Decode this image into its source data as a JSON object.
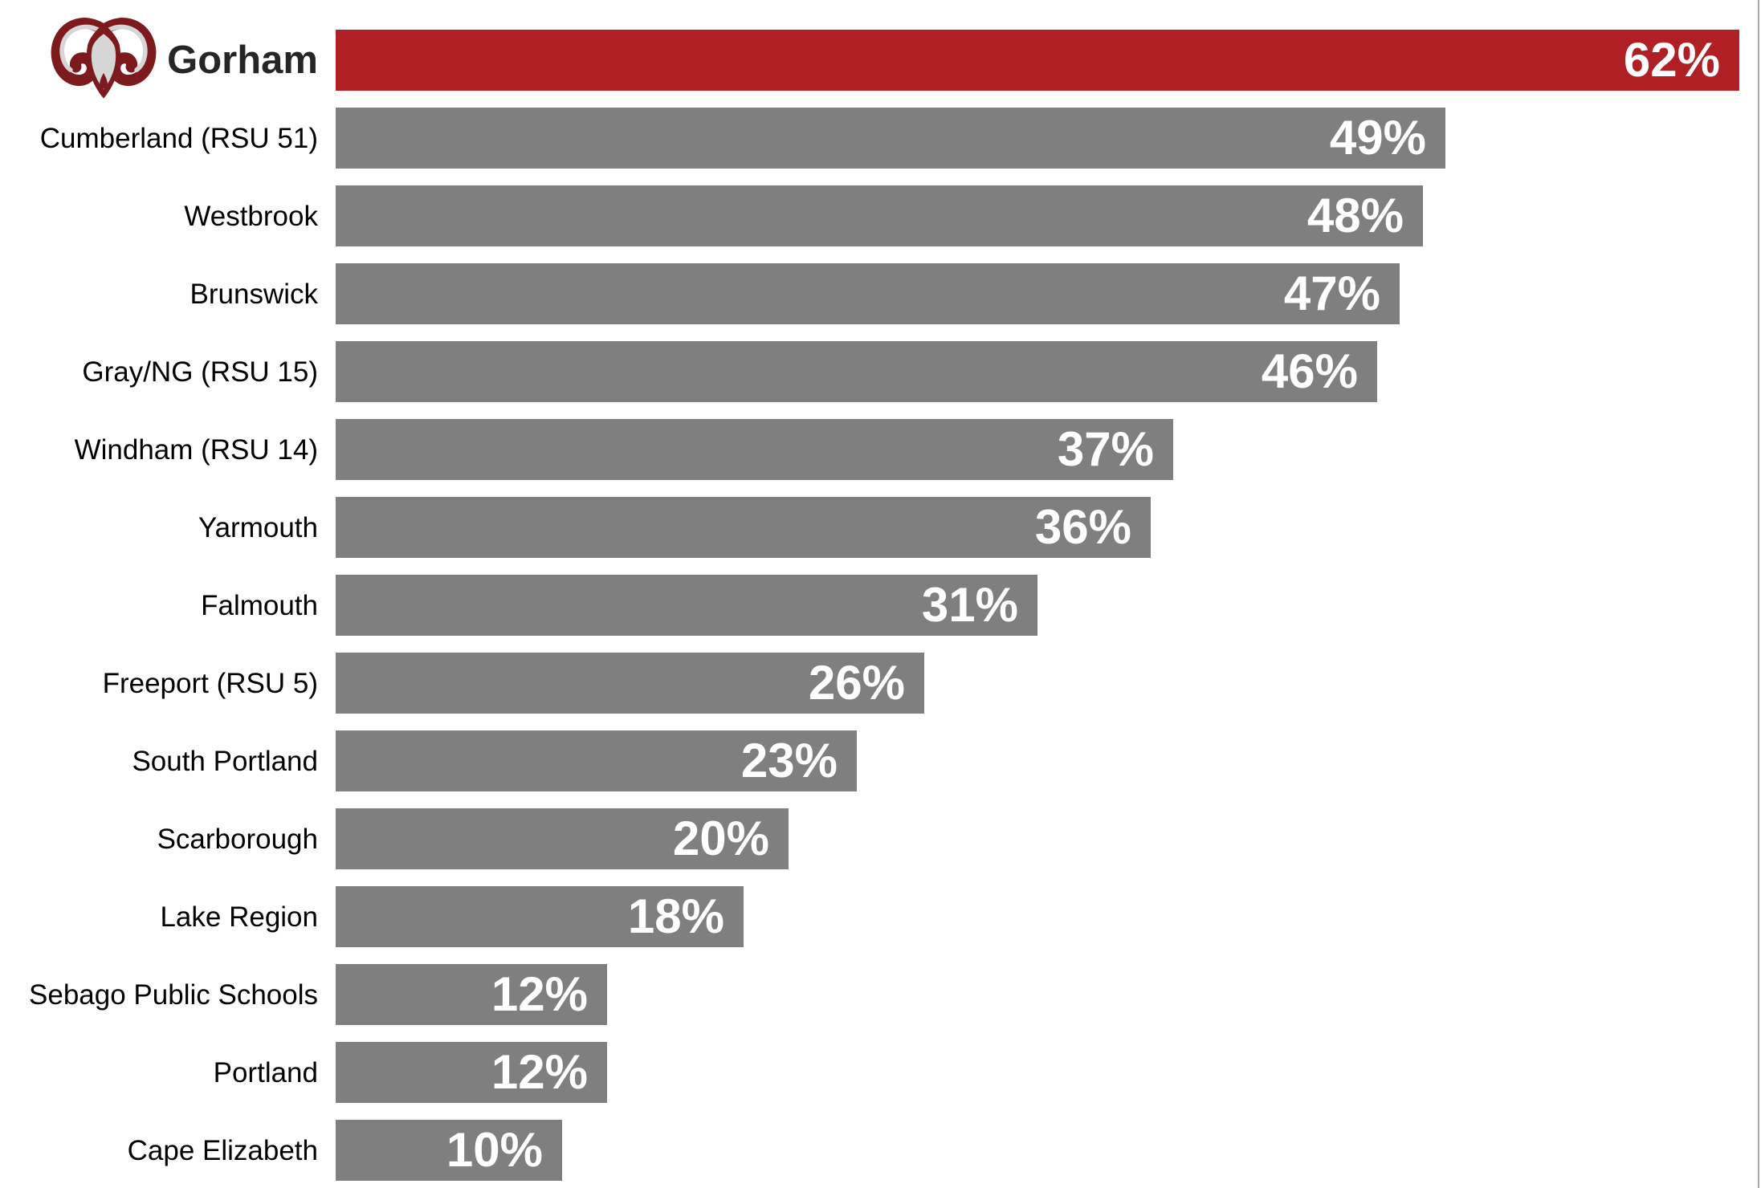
{
  "chart_data": {
    "type": "bar",
    "orientation": "horizontal",
    "title": "",
    "xlabel": "",
    "ylabel": "",
    "xlim": [
      0,
      63
    ],
    "grid": false,
    "legend": false,
    "categories": [
      "Gorham",
      "Cumberland (RSU 51)",
      "Westbrook",
      "Brunswick",
      "Gray/NG (RSU 15)",
      "Windham (RSU 14)",
      "Yarmouth",
      "Falmouth",
      "Freeport (RSU 5)",
      "South Portland",
      "Scarborough",
      "Lake Region",
      "Sebago Public Schools",
      "Portland",
      "Cape Elizabeth"
    ],
    "values": [
      62,
      49,
      48,
      47,
      46,
      37,
      36,
      31,
      26,
      23,
      20,
      18,
      12,
      12,
      10
    ],
    "value_labels": [
      "62%",
      "49%",
      "48%",
      "47%",
      "46%",
      "37%",
      "36%",
      "31%",
      "26%",
      "23%",
      "20%",
      "18%",
      "12%",
      "12%",
      "10%"
    ],
    "highlight_category": "Gorham",
    "highlight_icon": "ram-head-logo",
    "colors": {
      "highlight_bar": "#B01F24",
      "default_bar": "#7F7F7F",
      "value_text": "#FFFFFF",
      "label_text": "#000000",
      "highlight_label_text": "#262626",
      "right_border": "#A6A6A6",
      "logo_maroon": "#7C1A1E",
      "logo_gray": "#D6D6D6",
      "background": "#FFFFFF"
    }
  }
}
